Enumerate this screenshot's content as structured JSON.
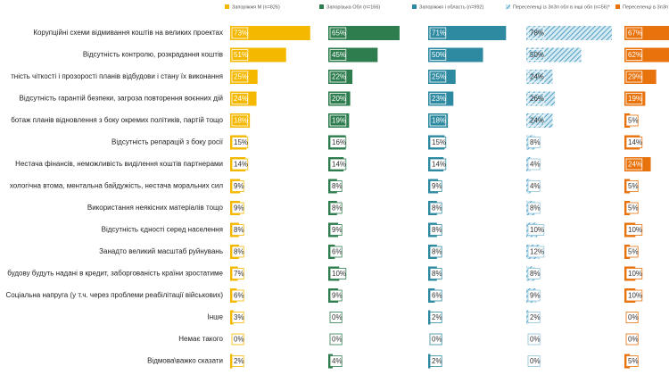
{
  "chart_data": {
    "type": "bar",
    "orientation": "horizontal",
    "categories": [
      "Корупційні схеми відмивання коштів на великих проектах",
      "Відсутність контролю, розкрадання коштів",
      "тність чіткості і прозорості планів відбудови і стану їх виконання",
      "Відсутність гарантій безпеки, загроза повторення воєнних дій",
      "ботаж планів відновлення з боку окремих політиків, партій тощо",
      "Відсутність репарацій з боку росії",
      "Нестача фінансів, неможливість виділення коштів партнерами",
      "хологічна втома, ментальна байдужість, нестача моральних сил",
      "Використання неякісних матеріалів тощо",
      "Відсутність єдності серед населення",
      "Занадто великий масштаб руйнувань",
      "будову будуть надані в кредит, заборгованість країни зростатиме",
      "Соціальна напруга (у т.ч. через проблеми реабілітації військових)",
      "Інше",
      "Немає такого",
      "Відмова\\важко сказати"
    ],
    "series": [
      {
        "name": "Запоріжжя М (n=826)",
        "color": "#f5b800",
        "values": [
          73,
          51,
          25,
          24,
          18,
          15,
          14,
          9,
          9,
          8,
          8,
          7,
          6,
          3,
          0,
          2
        ],
        "value_labels": [
          "73%",
          "51%",
          "25%",
          "24%",
          "18%",
          "15%",
          "14%",
          "9%",
          "9%",
          "8%",
          "8%",
          "7%",
          "6%",
          "3%",
          "0%",
          "2%"
        ]
      },
      {
        "name": "Запорізька Обл (n=166)",
        "color": "#2e7d4f",
        "values": [
          65,
          45,
          22,
          20,
          19,
          16,
          14,
          8,
          8,
          9,
          6,
          10,
          9,
          0,
          0,
          4
        ],
        "value_labels": [
          "65%",
          "45%",
          "22%",
          "20%",
          "19%",
          "16%",
          "14%",
          "8%",
          "8%",
          "9%",
          "6%",
          "10%",
          "9%",
          "0%",
          "0%",
          "4%"
        ]
      },
      {
        "name": "Запоріжжя і область (n=992)",
        "color": "#2e8aa0",
        "values": [
          71,
          50,
          25,
          23,
          18,
          15,
          14,
          9,
          8,
          8,
          8,
          8,
          6,
          2,
          0,
          2
        ],
        "value_labels": [
          "71%",
          "50%",
          "25%",
          "23%",
          "18%",
          "15%",
          "14%",
          "9%",
          "8%",
          "8%",
          "8%",
          "8%",
          "6%",
          "2%",
          "0%",
          "2%"
        ]
      },
      {
        "name": "Переселенці із ЗпЗп обл в інші обл (n=56)*",
        "color": "#8ec3da",
        "pattern": "hatch",
        "values": [
          78,
          50,
          24,
          26,
          24,
          8,
          4,
          4,
          8,
          10,
          12,
          8,
          9,
          2,
          0,
          0
        ],
        "value_labels": [
          "78%",
          "50%",
          "24%",
          "26%",
          "24%",
          "8%",
          "4%",
          "4%",
          "8%",
          "10%",
          "12%",
          "8%",
          "9%",
          "2%",
          "0%",
          "0%"
        ]
      },
      {
        "name": "Переселенці в ЗпЗп обл із інших обл",
        "color": "#e8720c",
        "values": [
          67,
          62,
          29,
          19,
          5,
          14,
          24,
          5,
          5,
          10,
          5,
          10,
          10,
          0,
          0,
          5
        ],
        "value_labels": [
          "67%",
          "62%",
          "29%",
          "19%",
          "5%",
          "14%",
          "24%",
          "5%",
          "5%",
          "10%",
          "5%",
          "10%",
          "10%",
          "0%",
          "0%",
          "5%"
        ]
      }
    ]
  }
}
